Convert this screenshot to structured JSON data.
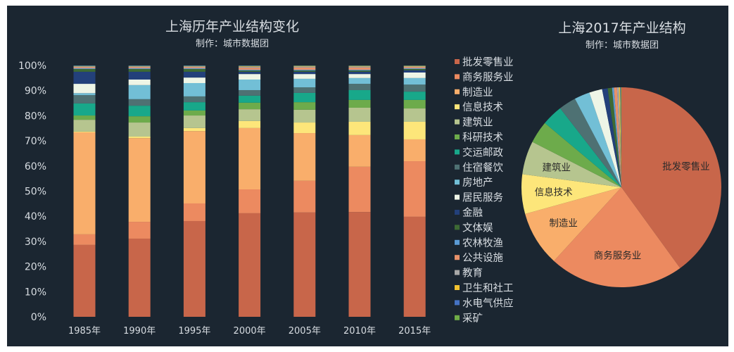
{
  "chart_data": [
    {
      "type": "bar",
      "stacked": true,
      "title": "上海历年产业结构变化",
      "subtitle": "制作：城市数据团",
      "categories": [
        "1985年",
        "1990年",
        "1995年",
        "2000年",
        "2005年",
        "2010年",
        "2015年"
      ],
      "ylim": [
        0,
        100
      ],
      "yticks": [
        "0%",
        "10%",
        "20%",
        "30%",
        "40%",
        "50%",
        "60%",
        "70%",
        "80%",
        "90%",
        "100%"
      ],
      "grid": false,
      "legend_placement": "right",
      "series": [
        {
          "name": "批发零售业",
          "color": "#c8664a",
          "values": [
            28.6,
            31.1,
            38.1,
            41.2,
            41.5,
            41.7,
            39.8
          ]
        },
        {
          "name": "商务服务业",
          "color": "#ec8a60",
          "values": [
            4.2,
            6.7,
            7.0,
            9.5,
            12.6,
            18.0,
            22.1
          ]
        },
        {
          "name": "制造业",
          "color": "#f9ae6b",
          "values": [
            40.6,
            33.3,
            28.8,
            24.4,
            19.0,
            12.6,
            8.7
          ]
        },
        {
          "name": "信息技术",
          "color": "#fde67a",
          "values": [
            0.3,
            0.6,
            1.2,
            2.8,
            4.2,
            5.3,
            7.0
          ]
        },
        {
          "name": "建筑业",
          "color": "#b6c58f",
          "values": [
            4.7,
            5.6,
            5.0,
            4.7,
            5.1,
            5.6,
            5.3
          ]
        },
        {
          "name": "科研技术",
          "color": "#6dab4b",
          "values": [
            1.7,
            2.5,
            2.0,
            2.6,
            3.0,
            3.1,
            3.4
          ]
        },
        {
          "name": "交运邮政",
          "color": "#18a88a",
          "values": [
            4.8,
            4.2,
            3.3,
            2.8,
            3.7,
            3.9,
            3.3
          ]
        },
        {
          "name": "住宿餐饮",
          "color": "#4e7173",
          "values": [
            3.3,
            2.6,
            2.3,
            2.2,
            2.2,
            2.5,
            2.8
          ]
        },
        {
          "name": "房地产",
          "color": "#72bfd6",
          "values": [
            0.8,
            5.6,
            5.3,
            4.2,
            3.4,
            2.3,
            2.6
          ]
        },
        {
          "name": "居民服务",
          "color": "#eef5e6",
          "values": [
            3.7,
            2.2,
            2.2,
            2.2,
            1.9,
            1.6,
            2.2
          ]
        },
        {
          "name": "金融",
          "color": "#23407a",
          "values": [
            4.8,
            3.1,
            2.3,
            0.9,
            0.9,
            0.9,
            0.9
          ]
        },
        {
          "name": "文体娱",
          "color": "#3d6a34",
          "values": [
            1.1,
            1.1,
            1.1,
            0.5,
            0.5,
            0.5,
            0.5
          ]
        },
        {
          "name": "农林牧渔",
          "color": "#5b9bd5",
          "values": [
            0.3,
            0.3,
            0.3,
            0.3,
            0.3,
            0.3,
            0.3
          ]
        },
        {
          "name": "公共设施",
          "color": "#e8916a",
          "values": [
            0.4,
            0.4,
            0.4,
            0.8,
            0.9,
            0.9,
            0.4
          ]
        },
        {
          "name": "教育",
          "color": "#a8a8a8",
          "values": [
            0.3,
            0.3,
            0.3,
            0.4,
            0.4,
            0.4,
            0.3
          ]
        },
        {
          "name": "卫生和社工",
          "color": "#f2c230",
          "values": [
            0.1,
            0.1,
            0.1,
            0.2,
            0.2,
            0.2,
            0.2
          ]
        },
        {
          "name": "水电气供应",
          "color": "#4472c4",
          "values": [
            0.2,
            0.2,
            0.2,
            0.2,
            0.1,
            0.1,
            0.1
          ]
        },
        {
          "name": "采矿",
          "color": "#70ad47",
          "values": [
            0.1,
            0.1,
            0.1,
            0.1,
            0.1,
            0.1,
            0.1
          ]
        }
      ]
    },
    {
      "type": "pie",
      "title": "上海2017年产业结构",
      "subtitle": "制作：城市数据团",
      "start": "top-clockwise",
      "slices": [
        {
          "name": "批发零售业",
          "value": 40.0,
          "label": "批发零售业"
        },
        {
          "name": "商务服务业",
          "value": 21.8,
          "label": "商务服务业"
        },
        {
          "name": "制造业",
          "value": 8.9,
          "label": "制造业"
        },
        {
          "name": "信息技术",
          "value": 6.4,
          "label": "信息技术"
        },
        {
          "name": "建筑业",
          "value": 5.4,
          "label": "建筑业"
        },
        {
          "name": "科研技术",
          "value": 3.6
        },
        {
          "name": "交运邮政",
          "value": 3.4
        },
        {
          "name": "住宿餐饮",
          "value": 2.8
        },
        {
          "name": "房地产",
          "value": 2.5
        },
        {
          "name": "居民服务",
          "value": 2.1
        },
        {
          "name": "金融",
          "value": 0.9
        },
        {
          "name": "文体娱",
          "value": 0.7
        },
        {
          "name": "农林牧渔",
          "value": 0.3
        },
        {
          "name": "公共设施",
          "value": 0.5
        },
        {
          "name": "教育",
          "value": 0.3
        },
        {
          "name": "卫生和社工",
          "value": 0.2
        },
        {
          "name": "水电气供应",
          "value": 0.1
        },
        {
          "name": "采矿",
          "value": 0.1
        }
      ]
    }
  ]
}
